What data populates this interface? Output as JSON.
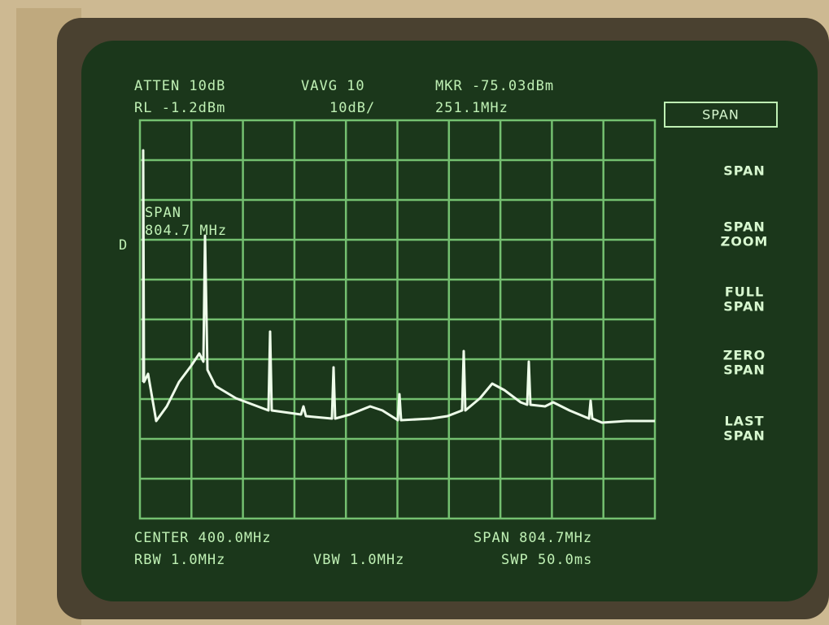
{
  "header": {
    "atten": "ATTEN 10dB",
    "vavg": "VAVG 10",
    "marker": "MKR -75.03dBm",
    "ref_level": "RL -1.2dBm",
    "scale": "10dB/",
    "marker_freq": "251.1MHz"
  },
  "softkeys": {
    "title": "SPAN",
    "keys": [
      [
        "SPAN"
      ],
      [
        "SPAN",
        "ZOOM"
      ],
      [
        "FULL",
        "SPAN"
      ],
      [
        "ZERO",
        "SPAN"
      ],
      [
        "LAST",
        "SPAN"
      ]
    ]
  },
  "annotation": {
    "label": "SPAN",
    "value": "804.7 MHz",
    "detector": "D"
  },
  "footer": {
    "center": "CENTER 400.0MHz",
    "span": "SPAN 804.7MHz",
    "rbw": "RBW 1.0MHz",
    "vbw": "VBW 1.0MHz",
    "sweep": "SWP 50.0ms"
  }
}
